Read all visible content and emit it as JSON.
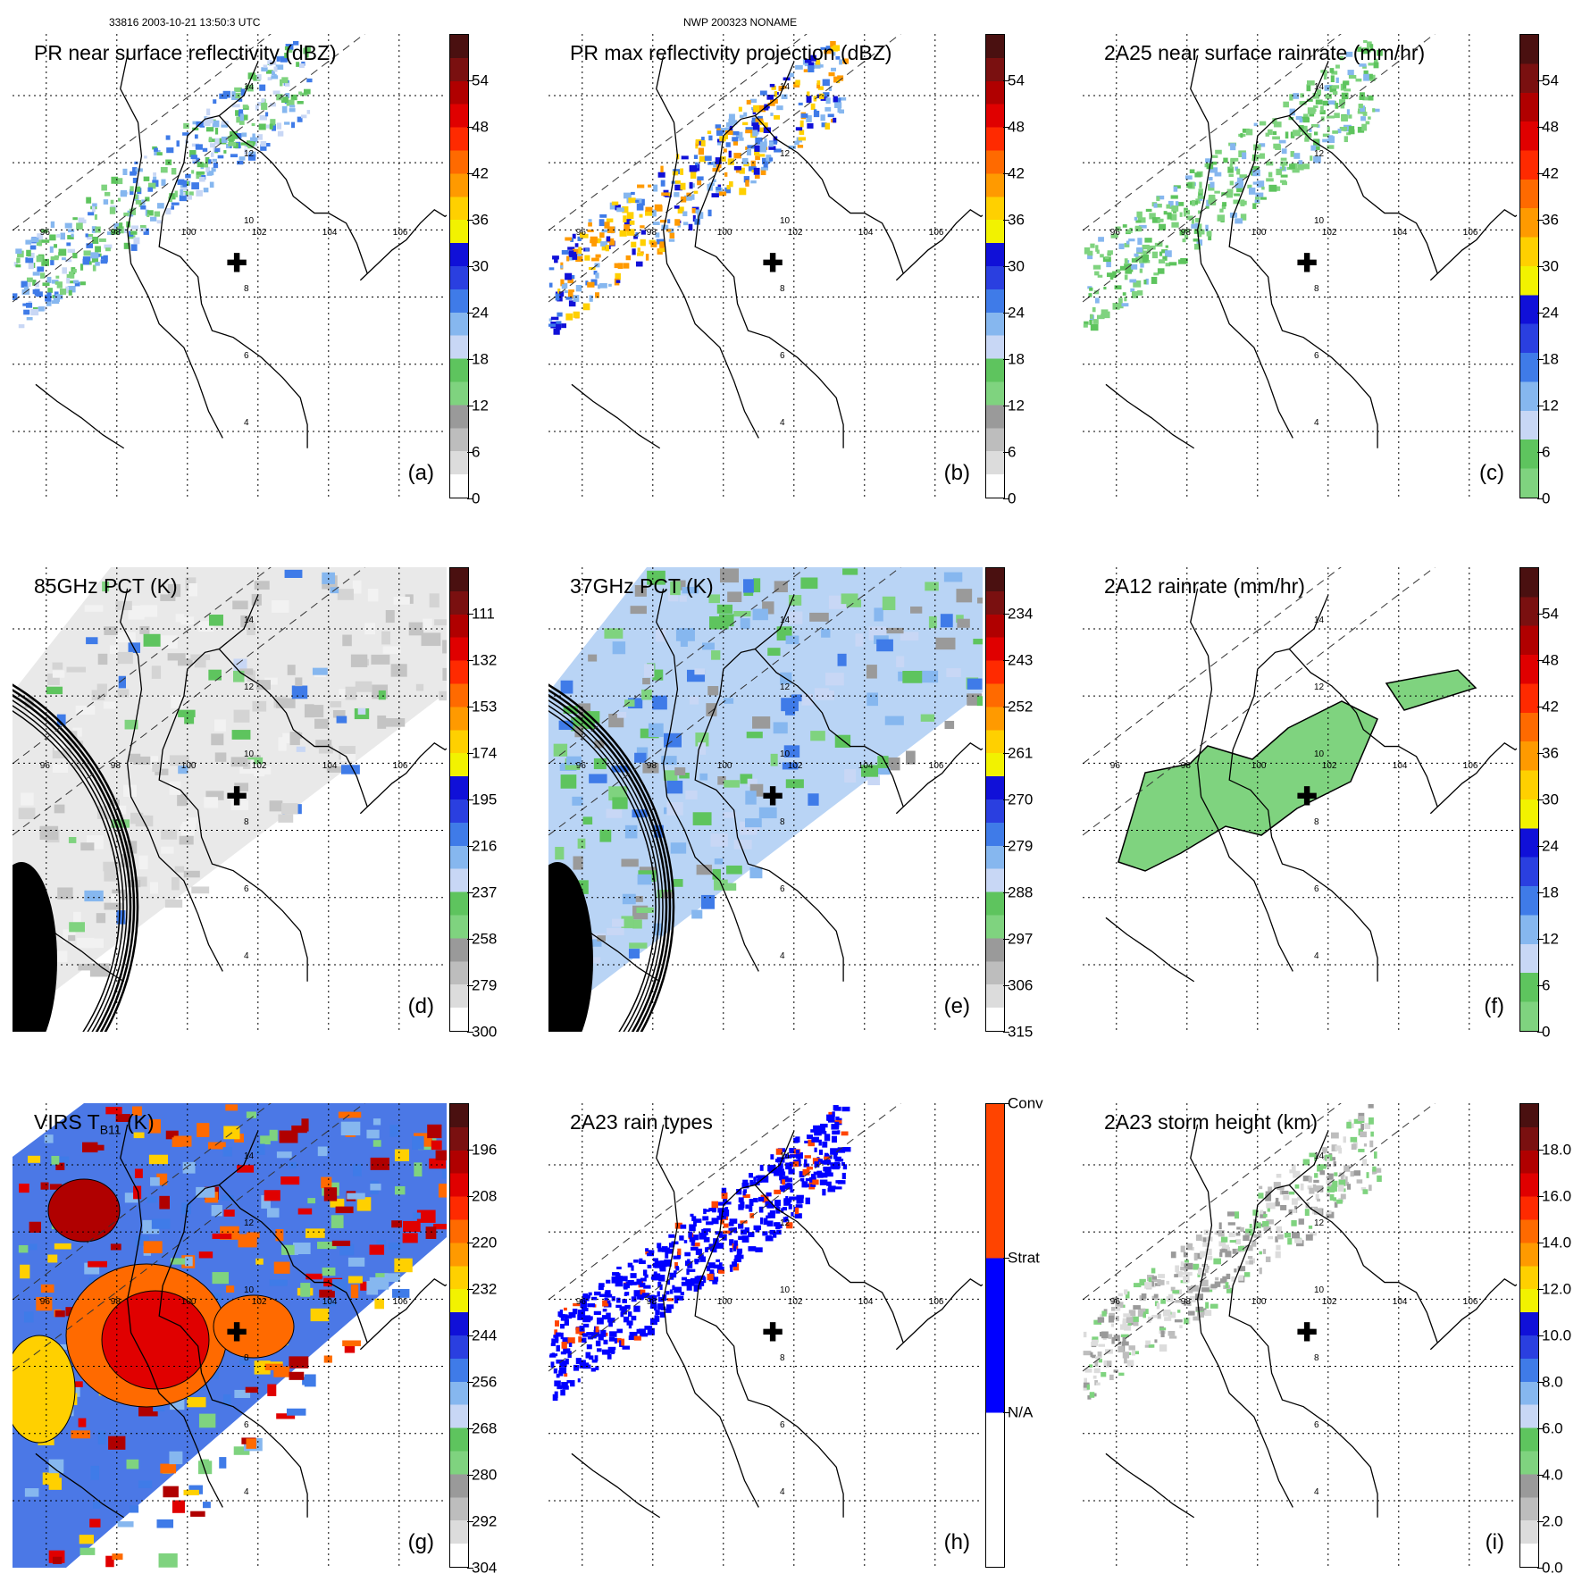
{
  "header": {
    "left": "33816 2003-10-21 13:50:3 UTC",
    "center": "NWP 200323 NONAME"
  },
  "lat_labels": [
    "14",
    "12",
    "10",
    "8",
    "6",
    "4"
  ],
  "lon_labels": [
    "96",
    "98",
    "100",
    "102",
    "104",
    "106"
  ],
  "center_marker": "✚",
  "panels": [
    {
      "id": "a",
      "title": "PR near surface reflectivity (dBZ)",
      "label": "(a)",
      "ticks": [
        "54",
        "48",
        "42",
        "36",
        "30",
        "24",
        "18",
        "12",
        "6",
        "0"
      ],
      "scale": "dbz",
      "field": "pr"
    },
    {
      "id": "b",
      "title": "PR max reflectivity projection (dBZ)",
      "label": "(b)",
      "ticks": [
        "54",
        "48",
        "42",
        "36",
        "30",
        "24",
        "18",
        "12",
        "6",
        "0"
      ],
      "scale": "dbz",
      "field": "prmax"
    },
    {
      "id": "c",
      "title": "2A25 near surface rainrate (mm/hr)",
      "label": "(c)",
      "ticks": [
        "54",
        "48",
        "42",
        "36",
        "30",
        "24",
        "18",
        "12",
        "6",
        "0"
      ],
      "scale": "rain",
      "field": "rain25"
    },
    {
      "id": "d",
      "title": "85GHz PCT (K)",
      "label": "(d)",
      "ticks": [
        "111",
        "132",
        "153",
        "174",
        "195",
        "216",
        "237",
        "258",
        "279",
        "300"
      ],
      "scale": "pct",
      "field": "pct85"
    },
    {
      "id": "e",
      "title": "37GHz PCT (K)",
      "label": "(e)",
      "ticks": [
        "234",
        "243",
        "252",
        "261",
        "270",
        "279",
        "288",
        "297",
        "306",
        "315"
      ],
      "scale": "pct",
      "field": "pct37"
    },
    {
      "id": "f",
      "title": "2A12 rainrate (mm/hr)",
      "label": "(f)",
      "ticks": [
        "54",
        "48",
        "42",
        "36",
        "30",
        "24",
        "18",
        "12",
        "6",
        "0"
      ],
      "scale": "rain",
      "field": "rain12"
    },
    {
      "id": "g",
      "title": "VIRS T",
      "title_sub": "B11",
      "title_tail": " (K)",
      "label": "(g)",
      "ticks": [
        "196",
        "208",
        "220",
        "232",
        "244",
        "256",
        "268",
        "280",
        "292",
        "304"
      ],
      "scale": "pct",
      "field": "virs"
    },
    {
      "id": "h",
      "title": "2A23 rain types",
      "label": "(h)",
      "ticks": [
        "Conv",
        "Strat",
        "N/A"
      ],
      "scale": "types",
      "field": "types"
    },
    {
      "id": "i",
      "title": "2A23 storm height (km)",
      "label": "(i)",
      "ticks": [
        "18.0",
        "16.0",
        "14.0",
        "12.0",
        "10.0",
        "8.0",
        "6.0",
        "4.0",
        "2.0",
        "0.0"
      ],
      "scale": "height",
      "field": "height"
    }
  ],
  "colors": {
    "dbz": [
      "#ffffff",
      "#dcdcdc",
      "#bdbdbd",
      "#9a9a9a",
      "#7fd37f",
      "#5ec45e",
      "#c8d7f5",
      "#86b7ef",
      "#3f7be8",
      "#2a3fe0",
      "#1010d8",
      "#f2f200",
      "#ffd000",
      "#ff9a00",
      "#ff6a00",
      "#ff2a00",
      "#e00000",
      "#b00000",
      "#7a1010",
      "#4a1010"
    ],
    "rain": [
      "#7fd37f",
      "#5ec45e",
      "#c8d7f5",
      "#86b7ef",
      "#3f7be8",
      "#2a3fe0",
      "#1010d8",
      "#f2f200",
      "#ffd000",
      "#ff9a00",
      "#ff6a00",
      "#ff2a00",
      "#e00000",
      "#b00000",
      "#7a1010",
      "#4a1010"
    ],
    "pct": [
      "#ffffff",
      "#dcdcdc",
      "#bdbdbd",
      "#9a9a9a",
      "#7fd37f",
      "#5ec45e",
      "#c8d7f5",
      "#86b7ef",
      "#3f7be8",
      "#2a3fe0",
      "#1010d8",
      "#f2f200",
      "#ffd000",
      "#ff9a00",
      "#ff6a00",
      "#ff2a00",
      "#e00000",
      "#b00000",
      "#7a1010",
      "#4a1010"
    ],
    "types": [
      "#ffffff",
      "#ffffff",
      "#0000ff",
      "#0000ff",
      "#ff4400",
      "#ff4400"
    ],
    "height": [
      "#ffffff",
      "#dcdcdc",
      "#bdbdbd",
      "#9a9a9a",
      "#7fd37f",
      "#5ec45e",
      "#c8d7f5",
      "#86b7ef",
      "#3f7be8",
      "#2a3fe0",
      "#1010d8",
      "#f2f200",
      "#ffd000",
      "#ff9a00",
      "#ff6a00",
      "#ff2a00",
      "#e00000",
      "#b00000",
      "#7a1010",
      "#4a1010"
    ]
  }
}
